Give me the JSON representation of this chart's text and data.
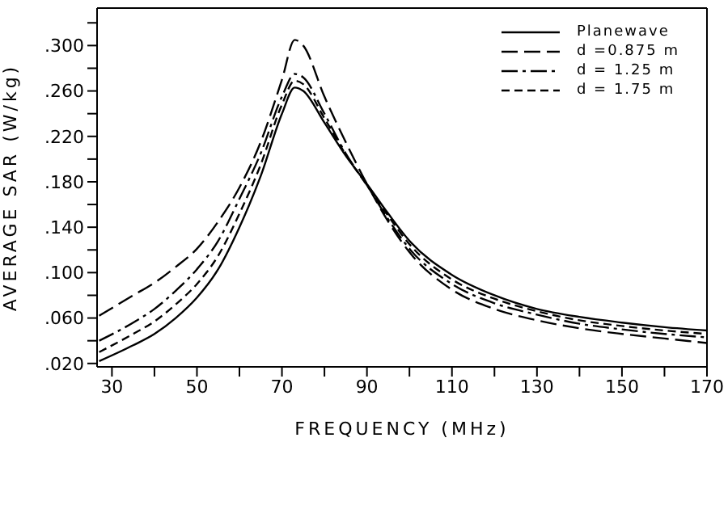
{
  "chart_data": {
    "type": "line",
    "xlabel": "FREQUENCY (MHz)",
    "ylabel": "AVERAGE SAR (W/kg)",
    "x": [
      27,
      35,
      40,
      45,
      50,
      55,
      60,
      65,
      70,
      73,
      75,
      80,
      85,
      90,
      95,
      100,
      110,
      120,
      130,
      140,
      150,
      160,
      170
    ],
    "series": [
      {
        "name": "Planewave",
        "color": "#000000",
        "line_style": "solid",
        "values": [
          0.022,
          0.036,
          0.046,
          0.06,
          0.078,
          0.103,
          0.14,
          0.185,
          0.24,
          0.263,
          0.26,
          0.232,
          0.203,
          0.178,
          0.152,
          0.128,
          0.098,
          0.08,
          0.068,
          0.061,
          0.056,
          0.052,
          0.049
        ]
      },
      {
        "name": "d =0.875 m",
        "color": "#000000",
        "line_style": "dashed",
        "values": [
          0.062,
          0.08,
          0.091,
          0.105,
          0.121,
          0.145,
          0.175,
          0.215,
          0.27,
          0.305,
          0.3,
          0.255,
          0.215,
          0.178,
          0.145,
          0.118,
          0.085,
          0.068,
          0.058,
          0.051,
          0.046,
          0.042,
          0.038
        ]
      },
      {
        "name": "d = 1.25 m",
        "color": "#000000",
        "line_style": "dashdot",
        "values": [
          0.04,
          0.056,
          0.068,
          0.084,
          0.103,
          0.128,
          0.165,
          0.205,
          0.255,
          0.275,
          0.272,
          0.24,
          0.205,
          0.177,
          0.147,
          0.121,
          0.09,
          0.073,
          0.063,
          0.055,
          0.05,
          0.046,
          0.043
        ]
      },
      {
        "name": "d = 1.75 m",
        "color": "#000000",
        "line_style": "dotted",
        "values": [
          0.03,
          0.046,
          0.057,
          0.072,
          0.09,
          0.115,
          0.152,
          0.195,
          0.248,
          0.269,
          0.266,
          0.236,
          0.204,
          0.177,
          0.15,
          0.125,
          0.094,
          0.077,
          0.066,
          0.058,
          0.053,
          0.049,
          0.046
        ]
      }
    ],
    "xlim": [
      26.5,
      170
    ],
    "xticks": [
      30,
      {
        "value": 40,
        "label": null
      },
      50,
      {
        "value": 60,
        "label": null
      },
      70,
      {
        "value": 80,
        "label": null
      },
      90,
      {
        "value": 100,
        "label": null
      },
      110,
      {
        "value": 120,
        "label": null
      },
      130,
      {
        "value": 140,
        "label": null
      },
      150,
      {
        "value": 160,
        "label": null
      },
      170
    ],
    "ylim": [
      0.017,
      0.333
    ],
    "yticks": [
      {
        "value": 0.02,
        "label": ".020"
      },
      {
        "value": 0.04,
        "label": null
      },
      {
        "value": 0.06,
        "label": ".060"
      },
      {
        "value": 0.08,
        "label": null
      },
      {
        "value": 0.1,
        "label": ".100"
      },
      {
        "value": 0.12,
        "label": null
      },
      {
        "value": 0.14,
        "label": ".140"
      },
      {
        "value": 0.16,
        "label": null
      },
      {
        "value": 0.18,
        "label": ".180"
      },
      {
        "value": 0.2,
        "label": null
      },
      {
        "value": 0.22,
        "label": ".220"
      },
      {
        "value": 0.24,
        "label": null
      },
      {
        "value": 0.26,
        "label": ".260"
      },
      {
        "value": 0.28,
        "label": null
      },
      {
        "value": 0.3,
        "label": ".300"
      },
      {
        "value": 0.32,
        "label": null
      }
    ],
    "grid": false,
    "legend": "top right",
    "marker": "none"
  }
}
